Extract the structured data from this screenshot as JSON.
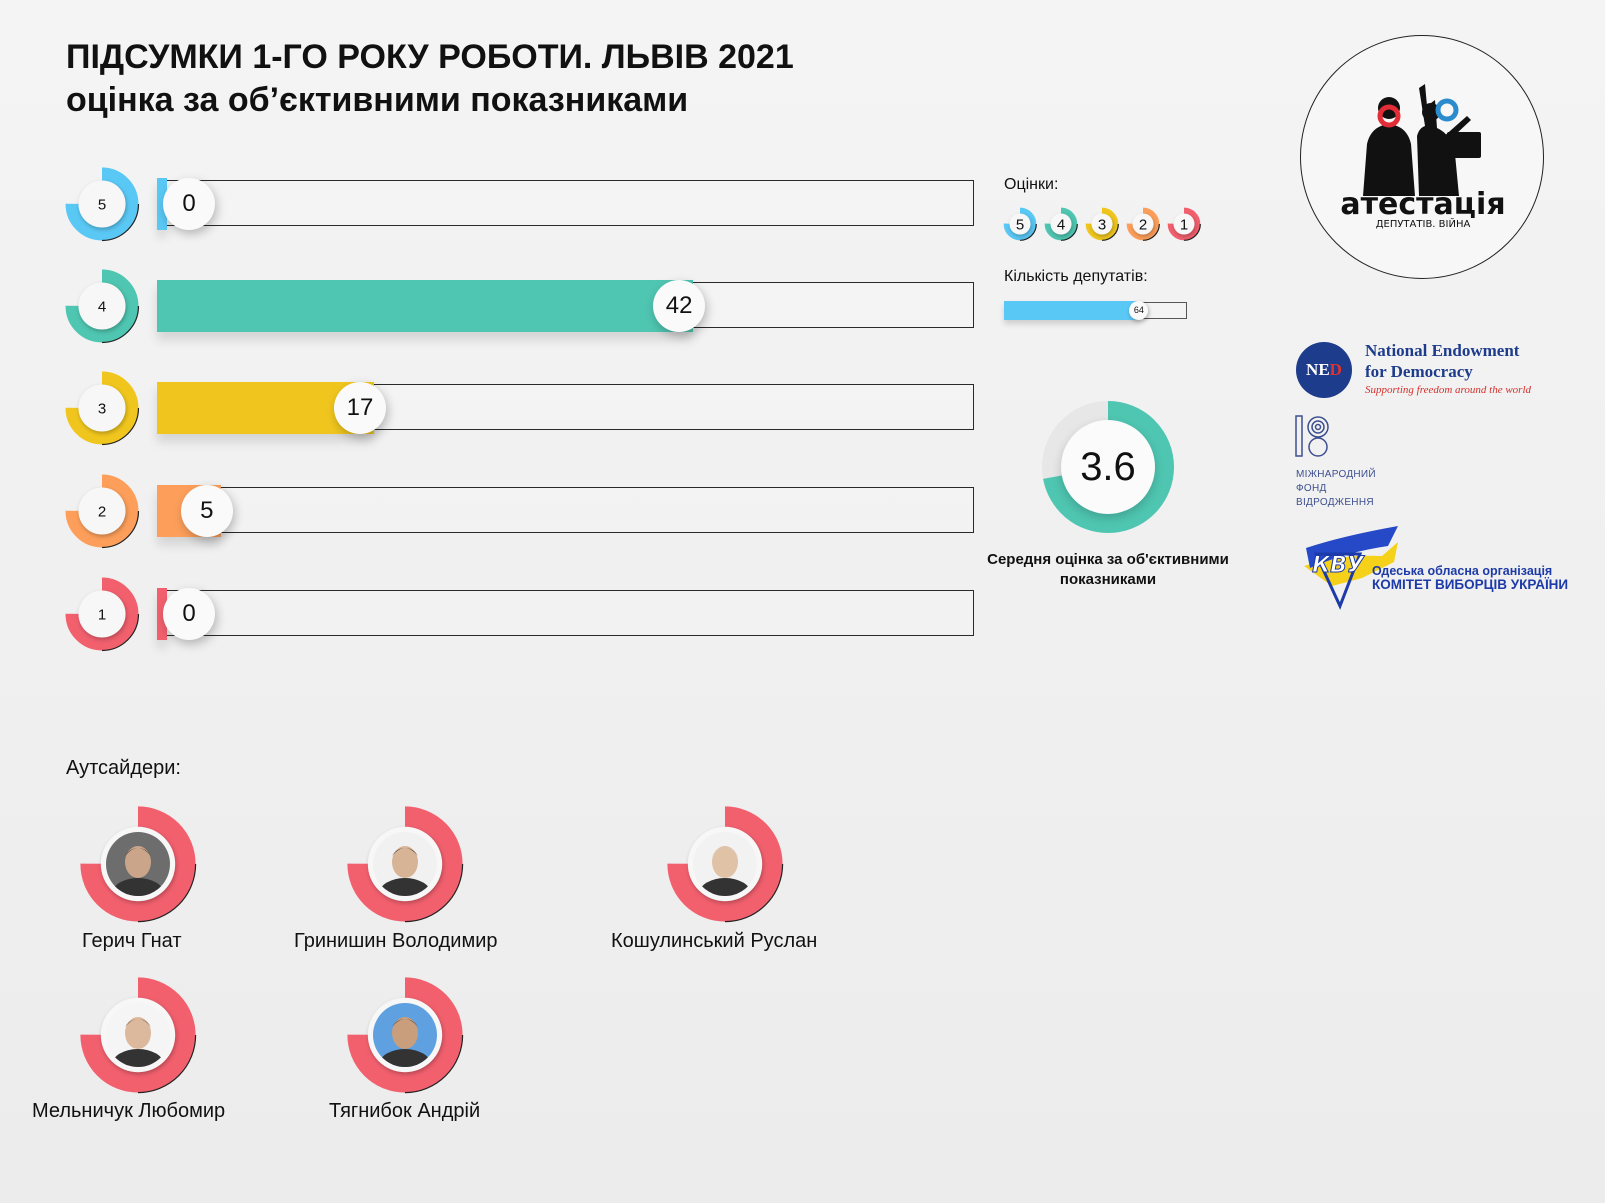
{
  "header": {
    "title_line1": "ПІДСУМКИ 1-ГО РОКУ РОБОТИ. ЛЬВІВ 2021",
    "title_line2": "оцінка за об’єктивними показниками"
  },
  "chart_data": {
    "type": "bar",
    "categories": [
      "5",
      "4",
      "3",
      "2",
      "1"
    ],
    "values": [
      0,
      42,
      17,
      5,
      0
    ],
    "xlim": [
      0,
      64
    ],
    "colors": [
      "#5ac8f5",
      "#4fc6b1",
      "#f0c61e",
      "#fd9f5b",
      "#f2606e"
    ]
  },
  "legend": {
    "grades_label": "Оцінки:",
    "grades": [
      "5",
      "4",
      "3",
      "2",
      "1"
    ],
    "count_label": "Кількість депутатів:",
    "count_value": "64",
    "count_fraction": 0.74
  },
  "average": {
    "value": "3.6",
    "fraction": 0.72,
    "caption": "Середня оцінка за об'єктивними показниками",
    "color": "#4fc6b1"
  },
  "logos": {
    "attestation_main": "атестація",
    "attestation_sub": "ДЕПУТАТІВ. ВІЙНА",
    "ned_abbr_1": "NE",
    "ned_abbr_2": "D",
    "ned_line1": "National Endowment",
    "ned_line2": "for Democracy",
    "ned_tagline": "Supporting freedom around the world",
    "irf_line1": "МІЖНАРОДНИЙ",
    "irf_line2": "ФОНД",
    "irf_line3": "ВІДРОДЖЕННЯ",
    "cvu_mark": "КВУ",
    "cvu_line1": "Одеська обласна організація",
    "cvu_line2": "КОМІТЕТ ВИБОРЦІВ УКРАЇНИ"
  },
  "outsiders": {
    "title": "Аутсайдери:",
    "people": [
      {
        "name": "Герич Гнат"
      },
      {
        "name": "Гринишин Володимир"
      },
      {
        "name": "Кошулинський Руслан"
      },
      {
        "name": "Мельничук Любомир"
      },
      {
        "name": "Тягнибок Андрій"
      }
    ],
    "ring_color": "#f2606e"
  }
}
